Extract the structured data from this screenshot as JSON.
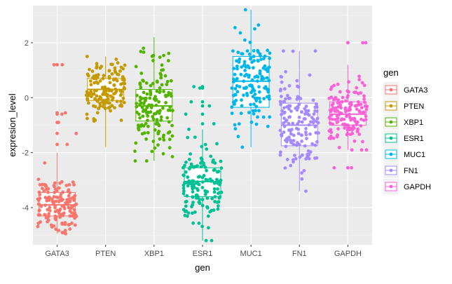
{
  "chart_data": {
    "type": "box_jitter",
    "xlabel": "gen",
    "ylabel": "expresion_level",
    "ylim": [
      -5.35,
      3.35
    ],
    "yticks": [
      -4,
      -2,
      0,
      2
    ],
    "categories": [
      "GATA3",
      "PTEN",
      "XBP1",
      "ESR1",
      "MUC1",
      "FN1",
      "GAPDH"
    ],
    "legend": {
      "title": "gen",
      "position": "right"
    },
    "grid": true,
    "colors": [
      "#F8766D",
      "#C49A00",
      "#53B400",
      "#00C094",
      "#00B6EB",
      "#A58AFF",
      "#FB61D7"
    ],
    "series": [
      {
        "name": "GATA3",
        "n": 150,
        "mean": -3.9,
        "sd": 0.55,
        "q1": -4.3,
        "median": -3.9,
        "q3": -3.45,
        "whisker_low": -4.95,
        "whisker_high": -2.0,
        "outliers": [
          -1.7,
          -1.3,
          -0.9,
          -0.6,
          -0.55,
          1.2,
          1.2
        ]
      },
      {
        "name": "PTEN",
        "n": 150,
        "mean": 0.3,
        "sd": 0.55,
        "q1": -0.1,
        "median": 0.3,
        "q3": 0.7,
        "whisker_low": -1.8,
        "whisker_high": 1.5,
        "outliers": []
      },
      {
        "name": "XBP1",
        "n": 150,
        "mean": -0.3,
        "sd": 0.75,
        "q1": -0.85,
        "median": -0.3,
        "q3": 0.3,
        "whisker_low": -2.3,
        "whisker_high": 2.2,
        "outliers": []
      },
      {
        "name": "ESR1",
        "n": 150,
        "mean": -3.1,
        "sd": 0.75,
        "q1": -3.6,
        "median": -3.05,
        "q3": -2.55,
        "whisker_low": -5.2,
        "whisker_high": -1.15,
        "outliers": [
          -0.95,
          -0.6,
          -0.3,
          -0.15,
          0.35,
          0.4
        ]
      },
      {
        "name": "MUC1",
        "n": 150,
        "mean": 0.6,
        "sd": 0.95,
        "q1": -0.35,
        "median": 0.6,
        "q3": 1.5,
        "whisker_low": -1.8,
        "whisker_high": 3.2,
        "outliers": []
      },
      {
        "name": "FN1",
        "n": 150,
        "mean": -1.0,
        "sd": 0.95,
        "q1": -1.75,
        "median": -1.0,
        "q3": -0.2,
        "whisker_low": -3.4,
        "whisker_high": 1.7,
        "outliers": []
      },
      {
        "name": "GAPDH",
        "n": 150,
        "mean": -0.6,
        "sd": 0.55,
        "q1": -1.0,
        "median": -0.6,
        "q3": -0.15,
        "whisker_low": -1.9,
        "whisker_high": 1.2,
        "outliers": [
          -2.55,
          -2.55,
          2.0,
          2.0
        ]
      }
    ]
  }
}
